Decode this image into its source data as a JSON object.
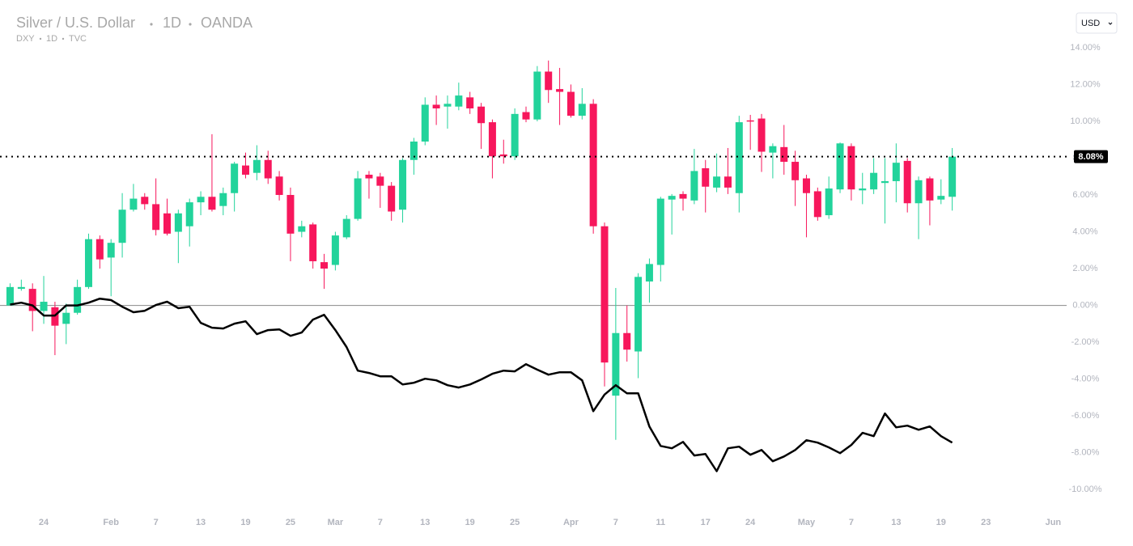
{
  "chart_data": {
    "type": "candlestick",
    "title": "Silver / U.S. Dollar",
    "interval": "1D",
    "exchange": "OANDA",
    "currency": "USD",
    "up_color": "#22d39b",
    "down_color": "#f7175c",
    "grid": false,
    "xlim": [
      -0.9,
      94.2
    ],
    "ylim": [
      -11,
      15.05
    ],
    "xticks": [
      {
        "value": 3,
        "label": "24"
      },
      {
        "value": 9,
        "label": "Feb"
      },
      {
        "value": 13,
        "label": "7"
      },
      {
        "value": 17,
        "label": "13"
      },
      {
        "value": 21,
        "label": "19"
      },
      {
        "value": 25,
        "label": "25"
      },
      {
        "value": 29,
        "label": "Mar"
      },
      {
        "value": 33,
        "label": "7"
      },
      {
        "value": 37,
        "label": "13"
      },
      {
        "value": 41,
        "label": "19"
      },
      {
        "value": 45,
        "label": "25"
      },
      {
        "value": 50,
        "label": "Apr"
      },
      {
        "value": 54,
        "label": "7"
      },
      {
        "value": 58,
        "label": "11"
      },
      {
        "value": 62,
        "label": "17"
      },
      {
        "value": 66,
        "label": "24"
      },
      {
        "value": 71,
        "label": "May"
      },
      {
        "value": 75,
        "label": "7"
      },
      {
        "value": 79,
        "label": "13"
      },
      {
        "value": 83,
        "label": "19"
      },
      {
        "value": 87,
        "label": "23"
      },
      {
        "value": 93,
        "label": "Jun"
      }
    ],
    "yticks": [
      {
        "value": 14,
        "label": "14.00%"
      },
      {
        "value": 12,
        "label": "12.00%"
      },
      {
        "value": 10,
        "label": "10.00%"
      },
      {
        "value": 8,
        "label": "8.00%"
      },
      {
        "value": 6,
        "label": "6.00%"
      },
      {
        "value": 4,
        "label": "4.00%"
      },
      {
        "value": 2,
        "label": "2.00%"
      },
      {
        "value": 0,
        "label": "0.00%"
      },
      {
        "value": -2,
        "label": "-2.00%"
      },
      {
        "value": -4,
        "label": "-4.00%"
      },
      {
        "value": -6,
        "label": "-6.00%"
      },
      {
        "value": -8,
        "label": "-8.00%"
      },
      {
        "value": -10,
        "label": "-10.00%"
      }
    ],
    "last_price": {
      "value": 8.08,
      "label": "8.08%"
    },
    "candles": {
      "open": [
        0,
        0.9,
        0.9,
        -0.3,
        -0.1,
        -1.0,
        -0.4,
        1.0,
        3.6,
        2.6,
        3.4,
        5.2,
        5.9,
        5.5,
        5.0,
        4.0,
        4.3,
        5.6,
        5.9,
        5.4,
        6.1,
        7.6,
        7.2,
        7.9,
        7.0,
        6.0,
        4.0,
        4.4,
        2.35,
        2.2,
        3.7,
        4.7,
        7.1,
        7.0,
        6.5,
        5.2,
        7.9,
        8.9,
        10.9,
        10.8,
        10.8,
        11.3,
        10.8,
        9.95,
        8.2,
        8.1,
        10.5,
        10.1,
        12.7,
        11.75,
        11.6,
        10.3,
        10.95,
        4.3,
        -4.9,
        -1.5,
        -2.5,
        1.3,
        2.2,
        5.75,
        6.05,
        5.7,
        7.45,
        6.4,
        7.0,
        6.1,
        10.05,
        10.15,
        8.3,
        8.6,
        7.8,
        6.9,
        6.2,
        4.9,
        6.3,
        8.65,
        6.25,
        6.3,
        6.65,
        6.75,
        7.85,
        5.55,
        6.9,
        5.75,
        5.9
      ],
      "high": [
        1.2,
        1.4,
        1.2,
        1.6,
        0.2,
        0.1,
        1.4,
        3.9,
        3.8,
        3.6,
        6.1,
        6.6,
        6.1,
        6.9,
        5.8,
        5.2,
        5.8,
        6.2,
        9.3,
        6.4,
        7.8,
        8.3,
        8.7,
        8.4,
        7.3,
        6.4,
        4.6,
        4.5,
        2.8,
        4.0,
        4.9,
        7.3,
        7.3,
        7.2,
        6.7,
        8.0,
        9.1,
        11.3,
        11.4,
        11.4,
        12.1,
        11.6,
        11.0,
        10.1,
        9.0,
        10.7,
        10.8,
        13.0,
        13.3,
        12.9,
        12.0,
        11.8,
        11.2,
        4.5,
        0.95,
        0.0,
        1.75,
        2.55,
        5.9,
        6.05,
        6.2,
        8.5,
        7.9,
        8.25,
        8.55,
        10.3,
        10.35,
        10.4,
        8.8,
        9.8,
        8.4,
        7.1,
        6.4,
        7.0,
        8.85,
        8.8,
        7.2,
        8.0,
        8.0,
        8.8,
        8.0,
        7.0,
        7.0,
        6.85,
        8.55
      ],
      "low": [
        0,
        0.8,
        -1.4,
        -1.0,
        -2.7,
        -2.1,
        -0.5,
        0.9,
        2.0,
        0.5,
        2.6,
        5.1,
        5.2,
        3.8,
        3.8,
        2.3,
        3.2,
        4.9,
        5.1,
        4.9,
        5.1,
        6.9,
        6.8,
        6.6,
        5.7,
        2.4,
        3.7,
        2.0,
        0.9,
        1.9,
        3.6,
        4.6,
        5.8,
        5.3,
        4.6,
        4.5,
        7.1,
        8.7,
        9.8,
        9.6,
        10.6,
        10.4,
        8.5,
        6.9,
        7.7,
        7.9,
        9.95,
        10.0,
        11.0,
        9.8,
        10.2,
        10.1,
        3.9,
        -4.4,
        -7.3,
        -3.05,
        -3.95,
        0.15,
        1.3,
        3.85,
        5.15,
        5.5,
        5.05,
        6.15,
        6.05,
        5.05,
        8.45,
        7.25,
        6.9,
        7.1,
        5.4,
        3.7,
        4.6,
        4.7,
        6.1,
        5.7,
        5.5,
        6.05,
        4.45,
        5.6,
        5.05,
        3.6,
        4.35,
        5.5,
        5.15
      ],
      "close": [
        1.0,
        1.0,
        -0.3,
        0.2,
        -1.1,
        -0.4,
        1.0,
        3.6,
        2.5,
        3.4,
        5.2,
        5.8,
        5.5,
        4.1,
        3.9,
        5.0,
        5.6,
        5.9,
        5.2,
        6.1,
        7.7,
        7.1,
        7.9,
        6.9,
        6.0,
        3.9,
        4.3,
        2.4,
        2.0,
        3.8,
        4.7,
        6.9,
        6.9,
        6.5,
        5.1,
        7.9,
        8.9,
        10.9,
        10.7,
        10.95,
        11.4,
        10.7,
        9.9,
        8.1,
        8.1,
        10.4,
        10.1,
        12.7,
        11.7,
        11.6,
        10.3,
        10.95,
        4.3,
        -3.1,
        -1.5,
        -2.4,
        1.55,
        2.25,
        5.8,
        5.95,
        5.8,
        7.3,
        6.45,
        7.0,
        6.4,
        9.95,
        10.0,
        8.35,
        8.65,
        7.8,
        6.8,
        6.1,
        4.8,
        6.35,
        8.8,
        6.3,
        6.35,
        7.2,
        6.75,
        7.75,
        5.55,
        6.8,
        5.7,
        5.95,
        8.08
      ]
    },
    "overlay": {
      "type": "line",
      "symbol": "DXY",
      "interval": "1D",
      "exchange": "TVC",
      "color": "#000000",
      "values": [
        0.05,
        0.15,
        0,
        -0.55,
        -0.55,
        0,
        0,
        0.15,
        0.37,
        0.29,
        -0.07,
        -0.37,
        -0.29,
        0.02,
        0.2,
        -0.15,
        -0.07,
        -0.95,
        -1.21,
        -1.25,
        -0.99,
        -0.86,
        -1.56,
        -1.34,
        -1.3,
        -1.65,
        -1.47,
        -0.77,
        -0.51,
        -1.34,
        -2.26,
        -3.54,
        -3.67,
        -3.85,
        -3.85,
        -4.29,
        -4.2,
        -3.98,
        -4.07,
        -4.33,
        -4.46,
        -4.29,
        -4.02,
        -3.71,
        -3.54,
        -3.58,
        -3.19,
        -3.49,
        -3.76,
        -3.63,
        -3.63,
        -4.07,
        -5.74,
        -4.84,
        -4.33,
        -4.77,
        -4.77,
        -6.57,
        -7.63,
        -7.76,
        -7.41,
        -8.15,
        -8.07,
        -9.0,
        -7.76,
        -7.67,
        -8.11,
        -7.85,
        -8.46,
        -8.2,
        -7.85,
        -7.32,
        -7.45,
        -7.71,
        -8.02,
        -7.58,
        -6.92,
        -7.1,
        -5.87,
        -6.62,
        -6.53,
        -6.75,
        -6.57,
        -7.1,
        -7.45
      ]
    }
  }
}
